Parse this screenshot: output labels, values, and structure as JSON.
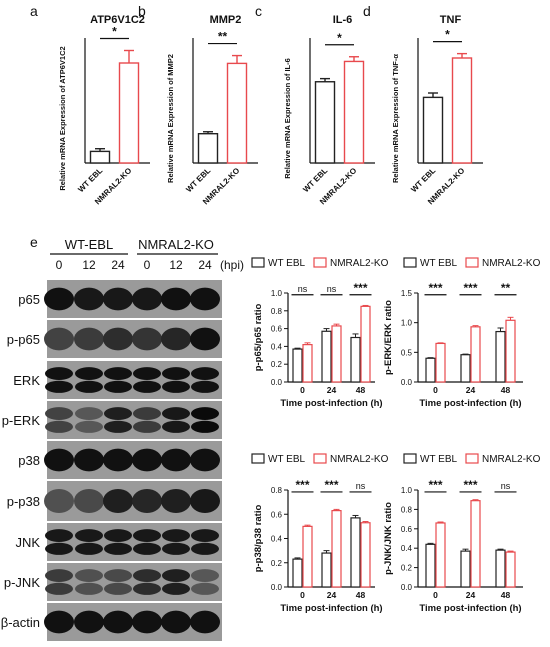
{
  "colors": {
    "wt": "#222222",
    "ko": "#e8494d",
    "blot_bg": "#0a0a0a"
  },
  "legend": {
    "wt_label": "WT EBL",
    "ko_label": "NMRAL2-KO"
  },
  "top_panels": [
    {
      "letter": "a",
      "title": "ATP6V1C2",
      "ylabel": "Relative mRNA Expression of  ATP6V1C2",
      "sig": "*"
    },
    {
      "letter": "b",
      "title": "MMP2",
      "ylabel": "Relative mRNA Expression of MMP2",
      "sig": "**"
    },
    {
      "letter": "c",
      "title": "IL-6",
      "ylabel": "Relative mRNA Expression of  IL-6",
      "sig": "*"
    },
    {
      "letter": "d",
      "title": "TNF",
      "ylabel": "Relative mRNA Expression of  TNF-α",
      "sig": "*"
    }
  ],
  "blot": {
    "letter": "e",
    "group_labels": [
      "WT-EBL",
      "NMRAL2-KO"
    ],
    "timepoints": [
      "0",
      "12",
      "24",
      "0",
      "12",
      "24"
    ],
    "unit": "(hpi)",
    "rows": [
      "p65",
      "p-p65",
      "ERK",
      "p-ERK",
      "p38",
      "p-p38",
      "JNK",
      "p-JNK",
      "β-actin"
    ]
  },
  "chart_data": [
    {
      "type": "bar",
      "panel": "a",
      "title": "ATP6V1C2",
      "ylabel": "Relative mRNA Expression of  ATP6V1C2",
      "categories": [
        "WT EBL",
        "NMRAL2-KO"
      ],
      "values": [
        0.65,
        5.6
      ],
      "errors": [
        0.15,
        0.7
      ],
      "ylim": [
        0,
        7
      ],
      "significance": "*"
    },
    {
      "type": "bar",
      "panel": "b",
      "title": "MMP2",
      "ylabel": "Relative mRNA Expression of MMP2",
      "categories": [
        "WT EBL",
        "NMRAL2-KO"
      ],
      "values": [
        0.75,
        2.55
      ],
      "errors": [
        0.05,
        0.2
      ],
      "ylim": [
        0,
        3.2
      ],
      "significance": "**"
    },
    {
      "type": "bar",
      "panel": "c",
      "title": "IL-6",
      "ylabel": "Relative mRNA Expression of  IL-6",
      "categories": [
        "WT EBL",
        "NMRAL2-KO"
      ],
      "values": [
        0.52,
        0.65
      ],
      "errors": [
        0.02,
        0.03
      ],
      "ylim": [
        0,
        0.8
      ],
      "significance": "*"
    },
    {
      "type": "bar",
      "panel": "d",
      "title": "TNF",
      "ylabel": "Relative mRNA Expression of  TNF-α",
      "categories": [
        "WT EBL",
        "NMRAL2-KO"
      ],
      "values": [
        1.05,
        1.68
      ],
      "errors": [
        0.07,
        0.07
      ],
      "ylim": [
        0,
        2.0
      ],
      "significance": "*"
    },
    {
      "type": "bar",
      "panel": "e1",
      "ylabel": "p-p65/p65 ratio",
      "xlabel": "Time post-infection (h)",
      "categories": [
        "0",
        "24",
        "48"
      ],
      "ylim": [
        0,
        1.0
      ],
      "yticks": [
        0.0,
        0.2,
        0.4,
        0.6,
        0.8,
        1.0
      ],
      "significance": [
        "ns",
        "ns",
        "***"
      ],
      "series": [
        {
          "name": "WT EBL",
          "values": [
            0.37,
            0.57,
            0.5
          ],
          "errors": [
            0.01,
            0.03,
            0.04
          ]
        },
        {
          "name": "NMRAL2-KO",
          "values": [
            0.42,
            0.63,
            0.85
          ],
          "errors": [
            0.02,
            0.02,
            0.01
          ]
        }
      ]
    },
    {
      "type": "bar",
      "panel": "e2",
      "ylabel": "p-ERK/ERK ratio",
      "xlabel": "Time post-infection (h)",
      "categories": [
        "0",
        "24",
        "48"
      ],
      "ylim": [
        0,
        1.5
      ],
      "yticks": [
        0.0,
        0.5,
        1.0,
        1.5
      ],
      "significance": [
        "***",
        "***",
        "**"
      ],
      "series": [
        {
          "name": "WT EBL",
          "values": [
            0.4,
            0.46,
            0.85
          ],
          "errors": [
            0.01,
            0.01,
            0.06
          ]
        },
        {
          "name": "NMRAL2-KO",
          "values": [
            0.65,
            0.93,
            1.04
          ],
          "errors": [
            0.01,
            0.02,
            0.05
          ]
        }
      ]
    },
    {
      "type": "bar",
      "panel": "e3",
      "ylabel": "p-p38/p38 ratio",
      "xlabel": "Time post-infection (h)",
      "categories": [
        "0",
        "24",
        "48"
      ],
      "ylim": [
        0,
        0.8
      ],
      "yticks": [
        0.0,
        0.2,
        0.4,
        0.6,
        0.8
      ],
      "significance": [
        "***",
        "***",
        "ns"
      ],
      "series": [
        {
          "name": "WT EBL",
          "values": [
            0.23,
            0.28,
            0.57
          ],
          "errors": [
            0.01,
            0.02,
            0.02
          ]
        },
        {
          "name": "NMRAL2-KO",
          "values": [
            0.5,
            0.63,
            0.53
          ],
          "errors": [
            0.01,
            0.01,
            0.01
          ]
        }
      ]
    },
    {
      "type": "bar",
      "panel": "e4",
      "ylabel": "p-JNK/JNK ratio",
      "xlabel": "Time post-infection (h)",
      "categories": [
        "0",
        "24",
        "48"
      ],
      "ylim": [
        0,
        1.0
      ],
      "yticks": [
        0.0,
        0.2,
        0.4,
        0.6,
        0.8,
        1.0
      ],
      "significance": [
        "***",
        "***",
        "ns"
      ],
      "series": [
        {
          "name": "WT EBL",
          "values": [
            0.44,
            0.37,
            0.38
          ],
          "errors": [
            0.01,
            0.02,
            0.01
          ]
        },
        {
          "name": "NMRAL2-KO",
          "values": [
            0.66,
            0.89,
            0.36
          ],
          "errors": [
            0.01,
            0.01,
            0.01
          ]
        }
      ]
    }
  ]
}
